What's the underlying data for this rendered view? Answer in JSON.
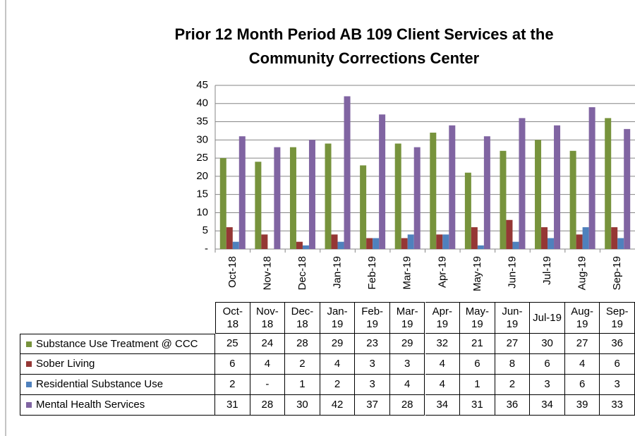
{
  "chart_data": {
    "type": "bar",
    "title": "Prior 12 Month Period AB 109 Client Services at the Community Corrections Center",
    "categories": [
      "Oct-18",
      "Nov-18",
      "Dec-18",
      "Jan-19",
      "Feb-19",
      "Mar-19",
      "Apr-19",
      "May-19",
      "Jun-19",
      "Jul-19",
      "Aug-19",
      "Sep-19"
    ],
    "series": [
      {
        "name": "Substance Use Treatment @ CCC",
        "color": "#77933c",
        "values": [
          25,
          24,
          28,
          29,
          23,
          29,
          32,
          21,
          27,
          30,
          27,
          36
        ]
      },
      {
        "name": "Sober Living",
        "color": "#953735",
        "values": [
          6,
          4,
          2,
          4,
          3,
          3,
          4,
          6,
          8,
          6,
          4,
          6
        ]
      },
      {
        "name": "Residential Substance Use",
        "color": "#4f81bd",
        "values": [
          2,
          0,
          1,
          2,
          3,
          4,
          4,
          1,
          2,
          3,
          6,
          3
        ],
        "value_labels": [
          "2",
          "-",
          "1",
          "2",
          "3",
          "4",
          "4",
          "1",
          "2",
          "3",
          "6",
          "3"
        ]
      },
      {
        "name": "Mental Health Services",
        "color": "#8064a2",
        "values": [
          31,
          28,
          30,
          42,
          37,
          28,
          34,
          31,
          36,
          34,
          39,
          33
        ]
      }
    ],
    "ylim": [
      0,
      45
    ],
    "yticks": [
      {
        "value": 0,
        "label": "-"
      },
      5,
      10,
      15,
      20,
      25,
      30,
      35,
      40,
      45
    ],
    "grid": true
  }
}
